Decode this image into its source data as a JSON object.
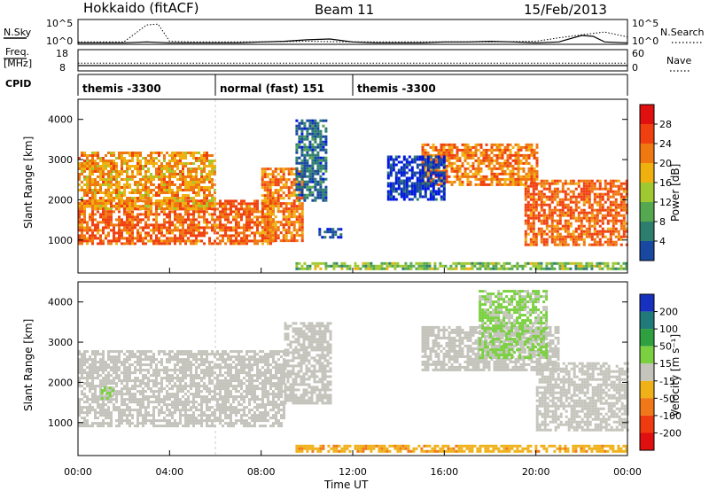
{
  "header": {
    "station": "Hokkaido (fitACF)",
    "beam": "Beam 11",
    "date": "15/Feb/2013"
  },
  "strips": {
    "nsky_label": "N.Sky",
    "nsearch_label": "N.Search",
    "noise_ticks": [
      "10^5",
      "10^0"
    ],
    "freq_label_line1": "Freq.",
    "freq_label_line2": "[MHz]",
    "freq_ticks": [
      "18",
      "8"
    ],
    "nave_label": "Nave",
    "nave_ticks": [
      "60",
      "0"
    ],
    "cpid_label": "CPID",
    "cpid_segments": [
      {
        "label": "themis -3300",
        "start_hour": 0.0,
        "end_hour": 6.0
      },
      {
        "label": "normal (fast) 151",
        "start_hour": 6.0,
        "end_hour": 12.0
      },
      {
        "label": "themis -3300",
        "start_hour": 12.0,
        "end_hour": 24.0
      }
    ]
  },
  "axes": {
    "y_label": "Slant Range [km]",
    "y_ticks": [
      "4000",
      "3000",
      "2000",
      "1000"
    ],
    "x_label": "Time UT",
    "x_ticks": [
      "00:00",
      "04:00",
      "08:00",
      "12:00",
      "16:00",
      "20:00",
      "00:00"
    ]
  },
  "colorbars": {
    "power": {
      "label": "Power [dB]",
      "ticks": [
        "28",
        "24",
        "20",
        "16",
        "12",
        "8",
        "4"
      ],
      "colors": [
        "#0018e0",
        "#1848a0",
        "#2e7e6e",
        "#55a850",
        "#a0c830",
        "#f0b010",
        "#f07810",
        "#f04010",
        "#e01010"
      ]
    },
    "velocity": {
      "label": "Velocity [m s⁻¹]",
      "ticks": [
        "200",
        "100",
        "50",
        "15",
        "-15",
        "-50",
        "-100",
        "-200"
      ],
      "colors": [
        "#1830c0",
        "#207a7a",
        "#2ea040",
        "#7ad040",
        "#c4c4bc",
        "#f0b018",
        "#f07818",
        "#f03a10",
        "#e01010"
      ]
    }
  },
  "chart_data": [
    {
      "type": "line",
      "name": "noise",
      "x_range_hours": [
        0,
        24
      ],
      "y_scale": "log",
      "ylim": [
        1,
        100000
      ],
      "series": [
        {
          "name": "N.Sky",
          "style": "solid",
          "x": [
            0,
            1,
            2,
            3,
            4,
            5,
            6,
            7,
            8,
            9,
            10,
            11,
            12,
            13,
            14,
            15,
            16,
            17,
            18,
            19,
            20,
            21,
            22,
            22.5,
            23,
            24
          ],
          "y": [
            2,
            2,
            2,
            3,
            2,
            2,
            2,
            2,
            3,
            4,
            8,
            12,
            3,
            2,
            2,
            2,
            3,
            3,
            4,
            3,
            2,
            3,
            60,
            40,
            3,
            2
          ]
        },
        {
          "name": "N.Search",
          "style": "dotted",
          "x": [
            0,
            1,
            2,
            3,
            3.5,
            4,
            5,
            6,
            8,
            10,
            12,
            14,
            16,
            18,
            20,
            21,
            22,
            23,
            24
          ],
          "y": [
            3,
            3,
            3,
            8000,
            12000,
            4,
            3,
            3,
            3,
            4,
            3,
            3,
            3,
            3,
            4,
            20,
            80,
            300,
            30
          ]
        }
      ]
    },
    {
      "type": "line",
      "name": "freq_nave",
      "x_range_hours": [
        0,
        24
      ],
      "series": [
        {
          "name": "Freq.",
          "style": "solid",
          "ylim": [
            8,
            18
          ],
          "x": [
            0,
            6,
            11.9,
            12.1,
            24
          ],
          "y": [
            10.5,
            10.5,
            10.5,
            10.5,
            10.5
          ]
        },
        {
          "name": "Nave",
          "style": "dotted",
          "ylim": [
            0,
            60
          ],
          "x": [
            0,
            24
          ],
          "y": [
            22,
            22
          ]
        }
      ]
    },
    {
      "type": "heatmap",
      "name": "power",
      "x_range_hours": [
        0,
        24
      ],
      "ylim": [
        180,
        4500
      ],
      "ylabel": "Slant Range [km]",
      "xlabel": "Time UT",
      "value_label": "Power [dB]",
      "regions": [
        {
          "x": [
            0,
            8.5
          ],
          "y": [
            900,
            2000
          ],
          "value": 28
        },
        {
          "x": [
            0,
            6
          ],
          "y": [
            1800,
            3200
          ],
          "value": 24
        },
        {
          "x": [
            8,
            9.8
          ],
          "y": [
            1000,
            2800
          ],
          "value": 26
        },
        {
          "x": [
            9.5,
            10.8
          ],
          "y": [
            2000,
            4000
          ],
          "value": 8
        },
        {
          "x": [
            10.5,
            11.5
          ],
          "y": [
            1100,
            1300
          ],
          "value": 6
        },
        {
          "x": [
            9.5,
            24
          ],
          "y": [
            300,
            450
          ],
          "value": 16
        },
        {
          "x": [
            15,
            20
          ],
          "y": [
            2400,
            3400
          ],
          "value": 26
        },
        {
          "x": [
            19.5,
            24
          ],
          "y": [
            900,
            2500
          ],
          "value": 28
        },
        {
          "x": [
            13.5,
            16
          ],
          "y": [
            2000,
            3100
          ],
          "value": 4
        }
      ]
    },
    {
      "type": "heatmap",
      "name": "velocity",
      "x_range_hours": [
        0,
        24
      ],
      "ylim": [
        180,
        4500
      ],
      "ylabel": "Slant Range [km]",
      "xlabel": "Time UT",
      "value_label": "Velocity [m s⁻¹]",
      "regions": [
        {
          "x": [
            0,
            9
          ],
          "y": [
            900,
            2800
          ],
          "value": 0
        },
        {
          "x": [
            9,
            11
          ],
          "y": [
            1500,
            3500
          ],
          "value": 0
        },
        {
          "x": [
            15,
            21
          ],
          "y": [
            2300,
            3400
          ],
          "value": 0
        },
        {
          "x": [
            20,
            24
          ],
          "y": [
            800,
            2500
          ],
          "value": 0
        },
        {
          "x": [
            9.5,
            24
          ],
          "y": [
            300,
            450
          ],
          "value": -40
        },
        {
          "x": [
            17.5,
            20.5
          ],
          "y": [
            2600,
            4300
          ],
          "value": 20
        },
        {
          "x": [
            1,
            1.5
          ],
          "y": [
            1600,
            1900
          ],
          "value": 20
        }
      ]
    }
  ]
}
